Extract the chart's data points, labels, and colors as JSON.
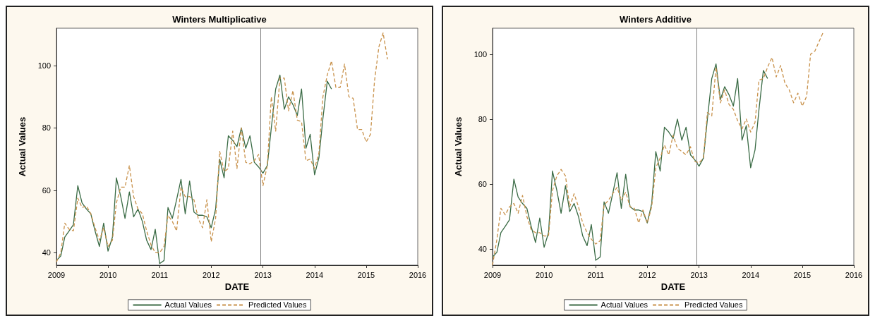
{
  "chart_data": [
    {
      "type": "line",
      "title": "Winters Multiplicative",
      "xlabel": "DATE",
      "ylabel": "Actual Values",
      "legend": "bottom",
      "grid": false,
      "marker": "none",
      "xlim": [
        "2009",
        "2016"
      ],
      "xticks": [
        "2009",
        "2010",
        "2011",
        "2012",
        "2013",
        "2014",
        "2015",
        "2016"
      ],
      "ylim": [
        36,
        112
      ],
      "yticks": [
        40,
        60,
        80,
        100
      ],
      "x": [
        "2009-01",
        "2009-02",
        "2009-03",
        "2009-04",
        "2009-05",
        "2009-06",
        "2009-07",
        "2009-08",
        "2009-09",
        "2009-10",
        "2009-11",
        "2009-12",
        "2010-01",
        "2010-02",
        "2010-03",
        "2010-04",
        "2010-05",
        "2010-06",
        "2010-07",
        "2010-08",
        "2010-09",
        "2010-10",
        "2010-11",
        "2010-12",
        "2011-01",
        "2011-02",
        "2011-03",
        "2011-04",
        "2011-05",
        "2011-06",
        "2011-07",
        "2011-08",
        "2011-09",
        "2011-10",
        "2011-11",
        "2011-12",
        "2012-01",
        "2012-02",
        "2012-03",
        "2012-04",
        "2012-05",
        "2012-06",
        "2012-07",
        "2012-08",
        "2012-09",
        "2012-10",
        "2012-11",
        "2012-12",
        "2013-01",
        "2013-02",
        "2013-03",
        "2013-04",
        "2013-05",
        "2013-06",
        "2013-07",
        "2013-08",
        "2013-09",
        "2013-10",
        "2013-11",
        "2013-12",
        "2014-01",
        "2014-02",
        "2014-03",
        "2014-04",
        "2014-05",
        "2014-06",
        "2014-07",
        "2014-08",
        "2014-09",
        "2014-10",
        "2014-11",
        "2014-12",
        "2015-01",
        "2015-02",
        "2015-03",
        "2015-04",
        "2015-05",
        "2015-06"
      ],
      "ref_lines": [
        {
          "axis": "x",
          "value": "2012-12-15",
          "color": "#808080"
        }
      ],
      "series": [
        {
          "name": "Actual Values",
          "color": "#3a6b45",
          "line_style": "solid",
          "values": [
            37.5,
            39,
            45,
            47,
            49,
            61.5,
            56,
            54,
            52.5,
            47,
            42,
            49.5,
            40.5,
            45,
            64,
            58,
            51,
            59.5,
            51.5,
            54,
            50,
            44,
            41,
            47.5,
            36.5,
            37.5,
            54.5,
            51,
            57,
            63.5,
            52.5,
            63,
            53,
            52,
            52,
            51.5,
            48,
            54,
            70,
            64,
            77.5,
            76,
            74,
            80,
            73.5,
            77.5,
            69,
            67.5,
            65.5,
            68,
            80,
            92.5,
            97,
            86,
            90,
            87.5,
            84,
            92.5,
            73.5,
            78,
            65,
            70.5,
            83,
            95,
            92.5,
            null,
            null,
            null,
            null,
            null,
            null,
            null,
            null,
            null,
            null,
            null,
            null,
            null
          ]
        },
        {
          "name": "Predicted Values",
          "color": "#c8914a",
          "line_style": "dashed",
          "values": [
            37,
            40,
            49.5,
            47.5,
            47,
            57.5,
            54.5,
            55,
            52.5,
            48,
            44,
            48,
            42,
            44,
            56,
            61,
            61,
            68,
            58,
            54,
            52.5,
            47,
            42.5,
            40,
            40,
            42,
            52,
            50,
            47,
            61,
            58,
            58,
            57,
            51,
            48,
            57,
            43.5,
            51,
            72.5,
            66,
            67,
            79,
            67,
            80,
            69,
            68.5,
            69.5,
            71.5,
            61.5,
            68,
            90,
            79,
            96,
            96,
            85.5,
            92,
            82.5,
            82,
            69.5,
            70,
            67,
            72,
            90,
            97,
            101.5,
            93,
            93,
            100.5,
            90,
            89.5,
            79.5,
            79.5,
            75.5,
            78,
            95,
            106,
            110.5,
            102
          ]
        }
      ]
    },
    {
      "type": "line",
      "title": "Winters Additive",
      "xlabel": "DATE",
      "ylabel": "Actual Values",
      "legend": "bottom",
      "grid": false,
      "marker": "none",
      "xlim": [
        "2009",
        "2016"
      ],
      "xticks": [
        "2009",
        "2010",
        "2011",
        "2012",
        "2013",
        "2014",
        "2015",
        "2016"
      ],
      "ylim": [
        35,
        108
      ],
      "yticks": [
        40,
        60,
        80,
        100
      ],
      "x": [
        "2009-01",
        "2009-02",
        "2009-03",
        "2009-04",
        "2009-05",
        "2009-06",
        "2009-07",
        "2009-08",
        "2009-09",
        "2009-10",
        "2009-11",
        "2009-12",
        "2010-01",
        "2010-02",
        "2010-03",
        "2010-04",
        "2010-05",
        "2010-06",
        "2010-07",
        "2010-08",
        "2010-09",
        "2010-10",
        "2010-11",
        "2010-12",
        "2011-01",
        "2011-02",
        "2011-03",
        "2011-04",
        "2011-05",
        "2011-06",
        "2011-07",
        "2011-08",
        "2011-09",
        "2011-10",
        "2011-11",
        "2011-12",
        "2012-01",
        "2012-02",
        "2012-03",
        "2012-04",
        "2012-05",
        "2012-06",
        "2012-07",
        "2012-08",
        "2012-09",
        "2012-10",
        "2012-11",
        "2012-12",
        "2013-01",
        "2013-02",
        "2013-03",
        "2013-04",
        "2013-05",
        "2013-06",
        "2013-07",
        "2013-08",
        "2013-09",
        "2013-10",
        "2013-11",
        "2013-12",
        "2014-01",
        "2014-02",
        "2014-03",
        "2014-04",
        "2014-05",
        "2014-06",
        "2014-07",
        "2014-08",
        "2014-09",
        "2014-10",
        "2014-11",
        "2014-12",
        "2015-01",
        "2015-02",
        "2015-03",
        "2015-04",
        "2015-05",
        "2015-06"
      ],
      "ref_lines": [
        {
          "axis": "x",
          "value": "2012-12-15",
          "color": "#808080"
        }
      ],
      "series": [
        {
          "name": "Actual Values",
          "color": "#3a6b45",
          "line_style": "solid",
          "values": [
            37.5,
            39,
            45,
            47,
            49,
            61.5,
            56,
            54,
            52.5,
            47,
            42,
            49.5,
            40.5,
            45,
            64,
            58,
            51,
            59.5,
            51.5,
            54,
            50,
            44,
            41,
            47.5,
            36.5,
            37.5,
            54.5,
            51,
            57,
            63.5,
            52.5,
            63,
            53,
            52,
            52,
            51.5,
            48,
            54,
            70,
            64,
            77.5,
            76,
            74,
            80,
            73.5,
            77.5,
            69,
            67.5,
            65.5,
            68,
            80,
            92.5,
            97,
            86,
            90,
            87.5,
            84,
            92.5,
            73.5,
            78,
            65,
            70.5,
            83,
            95,
            92.5,
            null,
            null,
            null,
            null,
            null,
            null,
            null,
            null,
            null,
            null,
            null,
            null,
            null
          ]
        },
        {
          "name": "Predicted Values",
          "color": "#c8914a",
          "line_style": "dashed",
          "values": [
            35,
            43,
            52.5,
            50.5,
            53,
            54,
            51,
            56.5,
            50,
            46,
            45,
            45,
            44,
            44,
            58,
            62.5,
            64.5,
            62.5,
            53,
            57,
            53,
            48,
            45,
            43,
            41.5,
            42.5,
            53.5,
            55,
            57,
            59,
            55,
            57.5,
            53,
            52.5,
            48,
            52,
            48,
            53,
            65,
            68,
            72,
            69,
            75,
            71,
            70,
            69,
            71.5,
            67,
            66.5,
            68,
            82,
            81,
            96,
            85,
            89,
            84.5,
            83,
            79.5,
            77,
            80,
            76,
            79,
            92,
            92.5,
            96,
            99,
            93,
            96.5,
            91,
            89,
            85,
            88,
            84,
            87,
            100,
            101,
            104,
            107
          ]
        }
      ]
    }
  ]
}
